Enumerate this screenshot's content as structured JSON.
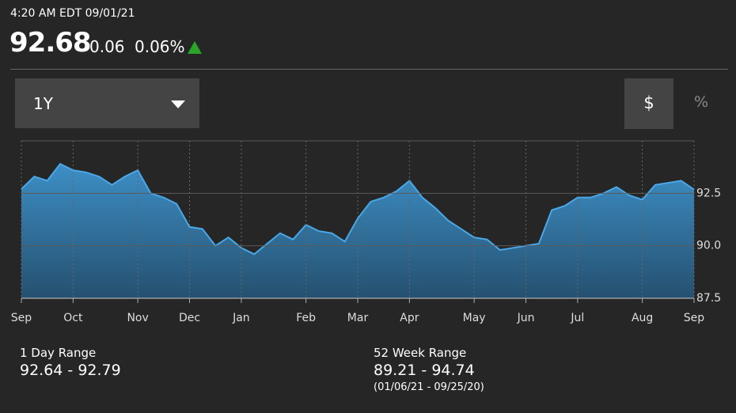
{
  "header": {
    "timestamp": "4:20 AM EDT 09/01/21",
    "price": "92.68",
    "change": "0.06",
    "change_pct": "0.06%"
  },
  "controls": {
    "range": "1Y",
    "dollar": "$",
    "percent": "%"
  },
  "chart_data": {
    "type": "area",
    "color": "#4aa8e8",
    "categories": [
      "Sep",
      null,
      null,
      null,
      "Oct",
      null,
      null,
      null,
      null,
      "Nov",
      null,
      null,
      null,
      "Dec",
      null,
      null,
      null,
      "Jan",
      null,
      null,
      null,
      null,
      "Feb",
      null,
      null,
      null,
      "Mar",
      null,
      null,
      null,
      "Apr",
      null,
      null,
      null,
      null,
      "May",
      null,
      null,
      null,
      "Jun",
      null,
      null,
      null,
      "Jul",
      null,
      null,
      null,
      null,
      "Aug",
      null,
      null,
      null,
      "Sep"
    ],
    "values": [
      92.7,
      93.3,
      93.1,
      93.9,
      93.6,
      93.5,
      93.3,
      92.9,
      93.3,
      93.6,
      92.5,
      92.3,
      92.0,
      90.9,
      90.8,
      90.0,
      90.4,
      89.9,
      89.6,
      90.1,
      90.6,
      90.3,
      91.0,
      90.7,
      90.6,
      90.2,
      91.3,
      92.1,
      92.3,
      92.6,
      93.1,
      92.3,
      91.8,
      91.2,
      90.8,
      90.4,
      90.3,
      89.8,
      89.9,
      90.0,
      90.1,
      91.7,
      91.9,
      92.3,
      92.3,
      92.5,
      92.8,
      92.4,
      92.2,
      92.9,
      93.0,
      93.1,
      92.68
    ],
    "ylim": [
      87.5,
      95.0
    ],
    "yticks": [
      87.5,
      {
        "value": 90,
        "label": "90.0"
      },
      92.5
    ],
    "grid": true
  },
  "stats": [
    {
      "label": "1 Day Range",
      "value": "92.64 - 92.79"
    },
    {
      "label": "52 Week Range",
      "value": "89.21 - 94.74",
      "note": "(01/06/21 - 09/25/20)"
    }
  ]
}
